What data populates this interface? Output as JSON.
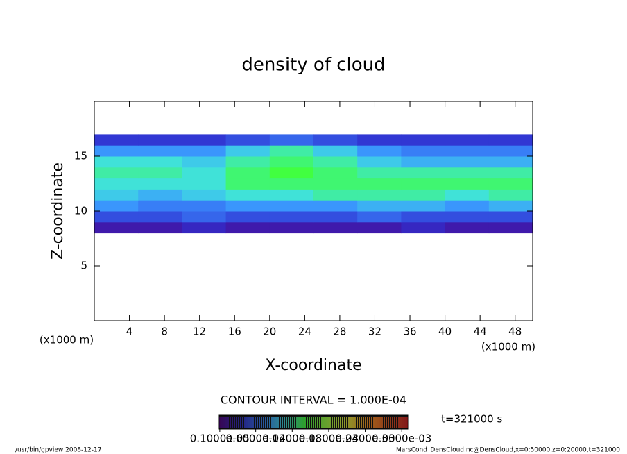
{
  "chart_data": {
    "type": "heatmap",
    "title": "density of cloud",
    "x_label": "X-coordinate",
    "y_label": "Z-coordinate",
    "x_unit": "(x1000 m)",
    "y_unit": "(x1000 m)",
    "xlim": [
      0,
      50
    ],
    "ylim": [
      0,
      20
    ],
    "xticks": [
      4,
      8,
      12,
      16,
      20,
      24,
      28,
      32,
      36,
      40,
      44,
      48
    ],
    "yticks": [
      5,
      10,
      15
    ],
    "x": [
      2.5,
      7.5,
      12.5,
      17.5,
      22.5,
      27.5,
      32.5,
      37.5,
      42.5,
      47.5
    ],
    "z": [
      8.5,
      9.5,
      10.5,
      11.5,
      12.5,
      13.5,
      14.5,
      15.5,
      16.5
    ],
    "values": [
      [
        2e-05,
        2e-05,
        3e-05,
        2e-05,
        2e-05,
        2e-05,
        2e-05,
        3e-05,
        2e-05,
        2e-05
      ],
      [
        5e-05,
        5e-05,
        6e-05,
        5e-05,
        5e-05,
        5e-05,
        6e-05,
        5e-05,
        5e-05,
        5e-05
      ],
      [
        8e-05,
        7e-05,
        7e-05,
        8e-05,
        8e-05,
        8e-05,
        9e-05,
        9e-05,
        8e-05,
        9e-05
      ],
      [
        0.0001,
        9e-05,
        0.0001,
        0.00011,
        0.00011,
        0.00012,
        0.00012,
        0.00012,
        0.00011,
        0.00012
      ],
      [
        0.00011,
        0.00011,
        0.00011,
        0.00013,
        0.00013,
        0.00013,
        0.00013,
        0.00013,
        0.00013,
        0.00013
      ],
      [
        0.00012,
        0.00012,
        0.00011,
        0.00013,
        0.00014,
        0.00013,
        0.00012,
        0.00012,
        0.00012,
        0.00012
      ],
      [
        0.00011,
        0.00011,
        0.0001,
        0.00012,
        0.00013,
        0.00012,
        0.0001,
        9e-05,
        9e-05,
        9e-05
      ],
      [
        8e-05,
        8e-05,
        8e-05,
        0.0001,
        0.00012,
        0.0001,
        8e-05,
        7e-05,
        7e-05,
        7e-05
      ],
      [
        4e-05,
        4e-05,
        4e-05,
        5e-05,
        6e-05,
        5e-05,
        4e-05,
        4e-05,
        4e-05,
        4e-05
      ]
    ],
    "contour_note": "CONTOUR INTERVAL = 1.000E-04",
    "time_label": "t=321000 s",
    "colorbar": {
      "lim": [
        0,
        0.00031
      ],
      "ticks": [
        {
          "value": 1e-06,
          "label": "0.1000e-05"
        },
        {
          "value": 6e-05,
          "label": "0.6000e-04"
        },
        {
          "value": 0.00012,
          "label": "0.1200e-03"
        },
        {
          "value": 0.00018,
          "label": "0.1800e-03"
        },
        {
          "value": 0.00024,
          "label": "0.2400e-03"
        },
        {
          "value": 0.0003,
          "label": "0.3000e-03"
        }
      ]
    },
    "footer_left": "/usr/bin/gpview  2008-12-17",
    "footer_right": "MarsCond_DensCloud.nc@DensCloud,x=0:50000,z=0:20000,t=321000"
  }
}
